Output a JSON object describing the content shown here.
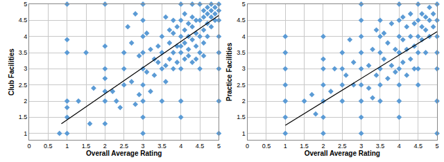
{
  "chart_data": [
    {
      "type": "scatter",
      "x_label": "Overall Average Rating",
      "y_label": "Club Facilities",
      "xlim": [
        0,
        5
      ],
      "xticks": [
        0,
        0.5,
        1,
        1.5,
        2,
        2.5,
        3,
        3.5,
        4,
        4.5,
        5
      ],
      "ylim": [
        0.8,
        5
      ],
      "yticks": [
        1,
        1.5,
        2,
        2.5,
        3,
        3.5,
        4,
        4.5,
        5
      ],
      "grid": true,
      "series": [
        {
          "type": "scatter",
          "color": "#5b9bd5",
          "marker": "diamond",
          "x": [
            0.8,
            1,
            1,
            1,
            1,
            1,
            1,
            1,
            1.3,
            1.5,
            1.6,
            1.7,
            2,
            2,
            2,
            2,
            2,
            2,
            2,
            2.2,
            2.3,
            2.5,
            2.5,
            2.5,
            2.7,
            2.8,
            3,
            3,
            3,
            3,
            3,
            3,
            3,
            3,
            3,
            3.2,
            3.3,
            3.4,
            3.5,
            3.5,
            3.5,
            3.5,
            3.6,
            3.7,
            3.7,
            3.8,
            3.8,
            3.8,
            3.9,
            3.9,
            4,
            4,
            4,
            4,
            4,
            4,
            4,
            4.1,
            4.1,
            4.1,
            4.2,
            4.2,
            4.2,
            4.3,
            4.3,
            4.3,
            4.3,
            4.4,
            4.4,
            4.4,
            4.5,
            4.5,
            4.5,
            4.5,
            4.5,
            4.6,
            4.6,
            4.6,
            4.6,
            4.7,
            4.7,
            4.7,
            4.7,
            4.8,
            4.8,
            4.8,
            4.8,
            4.9,
            4.9,
            4.9,
            5,
            5,
            5,
            5,
            5,
            5,
            5,
            5,
            3.4,
            3.6,
            3.2,
            3.3,
            3.1,
            3.9,
            4.0,
            4.2,
            4.4,
            4.6,
            3.7,
            3.8,
            2.6,
            2.7,
            2.9,
            3.1,
            3.6,
            4.1,
            4.3,
            2.8,
            2.4,
            2.9
          ],
          "values": [
            1,
            1,
            1.5,
            1.8,
            2,
            3.5,
            3.9,
            5,
            2,
            3.5,
            1.3,
            2.4,
            1.3,
            2,
            2.3,
            2.7,
            3,
            3.7,
            5,
            2.3,
            2,
            2.5,
            3.5,
            3,
            2.6,
            1.9,
            1,
            1.5,
            2,
            2.5,
            3,
            3.5,
            4,
            4.5,
            5,
            2.3,
            2.8,
            3.2,
            2,
            3,
            3.5,
            4,
            2.6,
            3.3,
            3.8,
            3,
            3.5,
            4.1,
            3.7,
            4.3,
            1.5,
            2,
            3,
            3.5,
            4,
            4.5,
            5,
            3.3,
            3.8,
            4.2,
            3.6,
            4,
            4.4,
            3.2,
            3.9,
            4.3,
            4.6,
            3.7,
            4.1,
            4.5,
            3,
            3.5,
            4,
            4.5,
            5,
            3.8,
            4.2,
            4.6,
            4.8,
            4,
            4.4,
            4.7,
            4.9,
            4.3,
            4.6,
            4.8,
            5,
            4.5,
            4.7,
            4.9,
            1,
            2,
            3,
            3.5,
            4,
            4.5,
            4.8,
            5,
            3.7,
            3.1,
            3.6,
            3.3,
            2.9,
            3.2,
            3.7,
            3.4,
            3.3,
            3.4,
            4.2,
            4.5,
            4.3,
            3.8,
            3.4,
            4.1,
            4.6,
            4.7,
            5,
            4.7,
            1.8,
            2.2
          ]
        },
        {
          "type": "line",
          "color": "#000000",
          "line_style": "solid",
          "x": [
            0.85,
            5
          ],
          "values": [
            1.3,
            4.65
          ]
        }
      ]
    },
    {
      "type": "scatter",
      "x_label": "Overall Average Rating",
      "y_label": "Practice Facilities",
      "xlim": [
        0,
        5
      ],
      "xticks": [
        0,
        0.5,
        1,
        1.5,
        2,
        2.5,
        3,
        3.5,
        4,
        4.5,
        5
      ],
      "ylim": [
        0.8,
        5
      ],
      "yticks": [
        1,
        1.5,
        2,
        2.5,
        3,
        3.5,
        4,
        4.5,
        5
      ],
      "grid": true,
      "series": [
        {
          "type": "scatter",
          "color": "#5b9bd5",
          "marker": "diamond",
          "x": [
            1,
            1,
            1,
            1,
            1,
            1,
            1,
            1.5,
            1.7,
            1.8,
            2,
            2,
            2,
            2,
            2,
            2,
            2,
            2.2,
            2.3,
            2.5,
            2.5,
            2.5,
            2.5,
            2.6,
            2.8,
            2.8,
            3,
            3,
            3,
            3,
            3,
            3,
            3,
            3,
            3,
            3.2,
            3.2,
            3.3,
            3.4,
            3.4,
            3.5,
            3.5,
            3.5,
            3.5,
            3.5,
            3.5,
            3.6,
            3.7,
            3.7,
            3.8,
            3.8,
            3.9,
            4,
            4,
            4,
            4,
            4,
            4,
            4,
            4,
            4.1,
            4.1,
            4.2,
            4.2,
            4.2,
            4.3,
            4.3,
            4.3,
            4.4,
            4.4,
            4.5,
            4.5,
            4.5,
            4.5,
            4.5,
            4.5,
            4.6,
            4.6,
            4.6,
            4.7,
            4.7,
            4.7,
            4.8,
            4.8,
            4.8,
            4.9,
            4.9,
            5,
            5,
            5,
            5,
            5,
            5,
            5,
            3.3,
            3.6,
            3.9,
            4.1,
            4.4,
            2.7
          ],
          "values": [
            1,
            1.5,
            2,
            2.5,
            3,
            3.5,
            4,
            2,
            2.2,
            1.6,
            1,
            1.5,
            2,
            2.5,
            3,
            3.3,
            4,
            2.3,
            3,
            2,
            2.5,
            3,
            3.5,
            2.8,
            2.5,
            3.2,
            1,
            1.5,
            2,
            2.5,
            3,
            3.5,
            4,
            4.5,
            5,
            2.4,
            3.1,
            3.6,
            2.8,
            4.2,
            2,
            2.5,
            3,
            3.5,
            4,
            4.5,
            3.3,
            2.7,
            3.8,
            3.1,
            4.4,
            3.6,
            1.5,
            2,
            2.5,
            3,
            3.5,
            4,
            4.5,
            5,
            3.2,
            3.9,
            2.8,
            3.6,
            4.3,
            3.3,
            4,
            4.7,
            3.7,
            4.4,
            2.5,
            3,
            3.5,
            4,
            4.5,
            5,
            3.9,
            4.3,
            4.7,
            3.5,
            4.2,
            4.6,
            4,
            4.5,
            4.9,
            4.3,
            4.7,
            1,
            2,
            3,
            3.5,
            4,
            4.5,
            5,
            2.1,
            4.1,
            2.9,
            4.6,
            3,
            3.9
          ]
        },
        {
          "type": "line",
          "color": "#000000",
          "line_style": "solid",
          "x": [
            1,
            5
          ],
          "values": [
            1.25,
            4.15
          ]
        }
      ]
    }
  ]
}
